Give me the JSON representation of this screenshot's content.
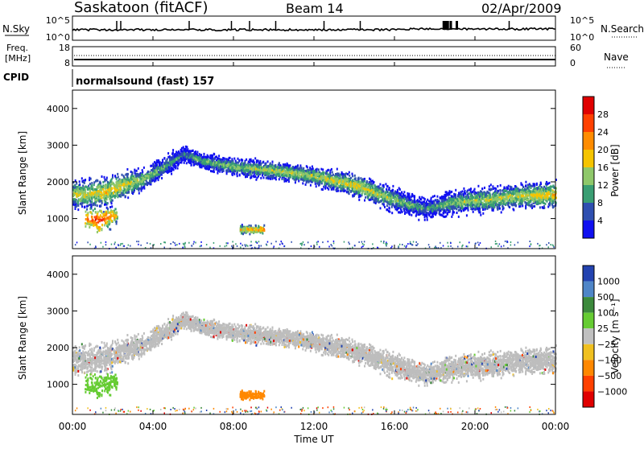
{
  "header": {
    "station": "Saskatoon (fitACF)",
    "beam": "Beam 14",
    "date": "02/Apr/2009"
  },
  "noise_panel": {
    "left_label": "N.Sky",
    "left_ticks": [
      "10^5",
      "10^0"
    ],
    "right_ticks": [
      "10^5",
      "10^0"
    ],
    "right_label": "N.Search",
    "right_legend_style": "dotted"
  },
  "freq_panel": {
    "left_label_line1": "Freq.",
    "left_label_line2": "[MHz]",
    "left_ticks": [
      "18",
      "8"
    ],
    "right_ticks": [
      "60",
      "0"
    ],
    "right_label": "Nave",
    "right_legend_style": "dotted"
  },
  "cpid_panel": {
    "label": "CPID",
    "program": "normalsound (fast) 157"
  },
  "power_panel": {
    "ylabel": "Slant Range [km]",
    "yticks": [
      "4000",
      "3000",
      "2000",
      "1000"
    ],
    "colorbar_label": "Power [dB]",
    "colorbar_ticks": [
      "28",
      "24",
      "20",
      "16",
      "12",
      "8",
      "4"
    ],
    "colorbar_colors": [
      "#e00000",
      "#ff4000",
      "#ff8c00",
      "#f5c400",
      "#8fc86a",
      "#3a9e73",
      "#2f4fb0",
      "#1010f0"
    ]
  },
  "velocity_panel": {
    "ylabel": "Slant Range [km]",
    "yticks": [
      "4000",
      "3000",
      "2000",
      "1000"
    ],
    "colorbar_label": "Velocity [m s⁻¹]",
    "colorbar_ticks": [
      "1000",
      "500",
      "100",
      "25",
      "−25",
      "−100",
      "−500",
      "−1000"
    ],
    "colorbar_colors": [
      "#2343b0",
      "#4f86c8",
      "#3c8a3c",
      "#66cc33",
      "#c0c0c0",
      "#f0c020",
      "#ff8800",
      "#ff4000",
      "#e00000"
    ]
  },
  "xaxis": {
    "ticks": [
      "00:00",
      "04:00",
      "08:00",
      "12:00",
      "16:00",
      "20:00",
      "00:00"
    ],
    "label": "Time UT"
  },
  "chart_data": {
    "type": "heatmap",
    "x_range_hours": [
      0,
      24
    ],
    "y_range_km": [
      180,
      4500
    ],
    "power_range_db": [
      0,
      32
    ],
    "velocity_range_ms": [
      -1200,
      1200
    ],
    "scatter_bands": [
      {
        "t": [
          0.0,
          1.5,
          2.5,
          3.5,
          4.5,
          5.5,
          6.5,
          8.0,
          10.0,
          12.0,
          14.0,
          16.0,
          17.5,
          19.0,
          20.5,
          22.0,
          24.0
        ],
        "range_km": [
          1650,
          1700,
          1900,
          2050,
          2400,
          2750,
          2550,
          2400,
          2300,
          2150,
          1900,
          1500,
          1250,
          1450,
          1500,
          1600,
          1650
        ],
        "width_km": [
          350,
          380,
          320,
          300,
          250,
          200,
          200,
          200,
          220,
          220,
          260,
          300,
          250,
          300,
          300,
          300,
          300
        ],
        "power_db": [
          16,
          18,
          18,
          14,
          12,
          10,
          12,
          14,
          16,
          16,
          18,
          14,
          10,
          14,
          16,
          16,
          20
        ]
      },
      {
        "t": [
          0.6,
          1.3,
          2.2
        ],
        "range_km": [
          1000,
          950,
          1100
        ],
        "width_km": [
          250,
          300,
          200
        ],
        "power_db": [
          22,
          28,
          20
        ]
      },
      {
        "t": [
          8.3,
          9.5
        ],
        "range_km": [
          700,
          700
        ],
        "width_km": [
          100,
          100
        ],
        "power_db": [
          20,
          24
        ]
      }
    ],
    "noise_trace": "near-constant with spikes near 18:30 UT",
    "frequency_trace": "constant"
  }
}
